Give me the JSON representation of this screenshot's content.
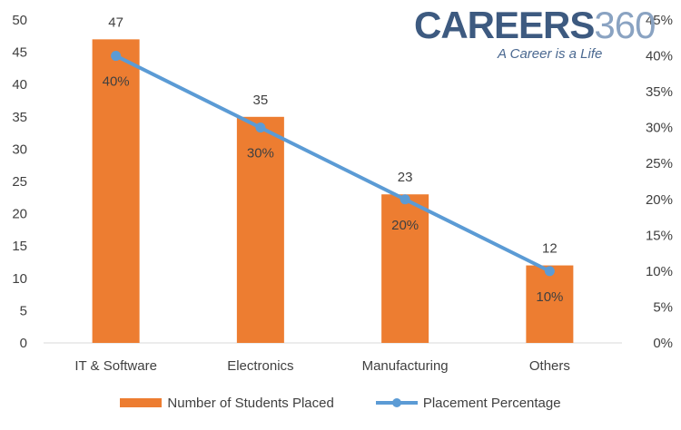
{
  "logo": {
    "brand": "CAREERS",
    "brand_number": "360",
    "tagline": "A Career is a Life"
  },
  "chart_data": {
    "type": "bar",
    "categories": [
      "IT & Software",
      "Electronics",
      "Manufacturing",
      "Others"
    ],
    "series": [
      {
        "name": "Number of Students Placed",
        "type": "bar",
        "axis": "left",
        "color": "#ed7d31",
        "values": [
          47,
          35,
          23,
          12
        ],
        "value_labels": [
          "47",
          "35",
          "23",
          "12"
        ]
      },
      {
        "name": "Placement Percentage",
        "type": "line",
        "axis": "right",
        "color": "#5b9bd5",
        "values": [
          0.4,
          0.3,
          0.2,
          0.1
        ],
        "value_labels": [
          "40%",
          "30%",
          "20%",
          "10%"
        ]
      }
    ],
    "y_left": {
      "min": 0,
      "max": 50,
      "step": 5,
      "tick_labels": [
        "0",
        "5",
        "10",
        "15",
        "20",
        "25",
        "30",
        "35",
        "40",
        "45",
        "50"
      ]
    },
    "y_right": {
      "min": 0,
      "max": 0.45,
      "step": 0.05,
      "tick_labels": [
        "0%",
        "5%",
        "10%",
        "15%",
        "20%",
        "25%",
        "30%",
        "35%",
        "40%",
        "45%"
      ]
    },
    "grid": false,
    "legend_position": "bottom"
  }
}
